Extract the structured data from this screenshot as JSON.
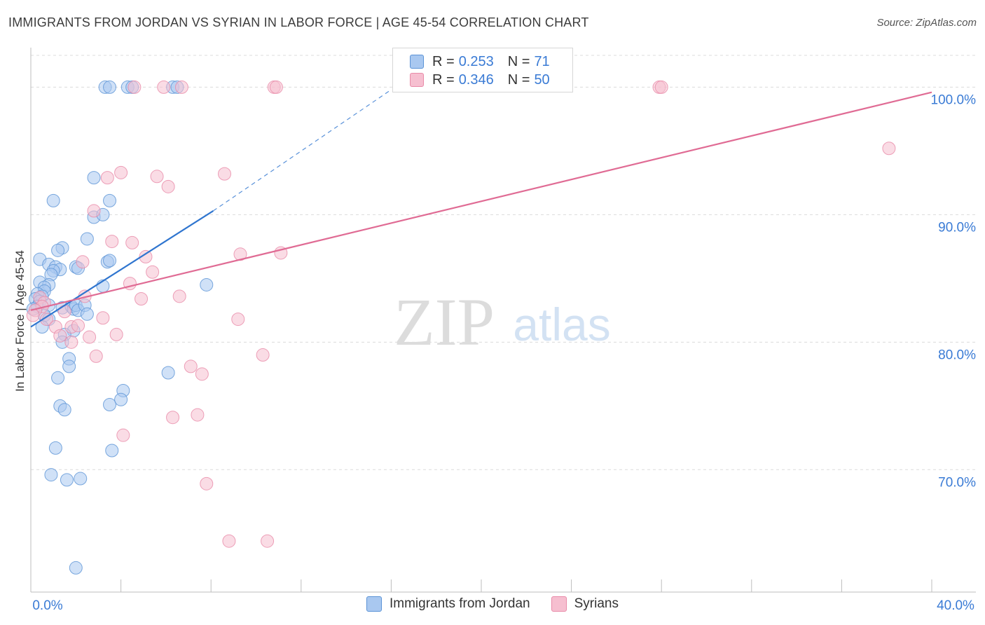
{
  "header": {
    "title": "IMMIGRANTS FROM JORDAN VS SYRIAN IN LABOR FORCE | AGE 45-54 CORRELATION CHART",
    "source": "Source: ZipAtlas.com"
  },
  "watermark": {
    "zip": "ZIP",
    "atlas": "atlas"
  },
  "colors": {
    "blue_fill": "#a9c8f0",
    "blue_stroke": "#5b93d6",
    "blue_line": "#2f75cf",
    "pink_fill": "#f6bfd0",
    "pink_stroke": "#e98aa8",
    "pink_line": "#e06b94",
    "grid": "#dcdcdc",
    "axis_label_blue": "#3a7bd5"
  },
  "legend": {
    "rows": [
      {
        "r_label": "R = ",
        "r_value": "0.253",
        "n_label": "N = ",
        "n_value": "71"
      },
      {
        "r_label": "R = ",
        "r_value": "0.346",
        "n_label": "N = ",
        "n_value": "50"
      }
    ]
  },
  "bottom_legend": {
    "items": [
      {
        "label": "Immigrants from Jordan"
      },
      {
        "label": "Syrians"
      }
    ]
  },
  "chart_data": {
    "type": "scatter",
    "title": "IMMIGRANTS FROM JORDAN VS SYRIAN IN LABOR FORCE | AGE 45-54 CORRELATION CHART",
    "xlabel": "",
    "ylabel": "In Labor Force | Age 45-54",
    "xlim": [
      0,
      40
    ],
    "ylim": [
      60.4,
      103.1
    ],
    "x_tick_labels": [
      {
        "value": 0,
        "label": "0.0%"
      },
      {
        "value": 40,
        "label": "40.0%"
      }
    ],
    "y_tick_labels": [
      {
        "value": 70,
        "label": "70.0%"
      },
      {
        "value": 80,
        "label": "80.0%"
      },
      {
        "value": 90,
        "label": "90.0%"
      },
      {
        "value": 100,
        "label": "100.0%"
      }
    ],
    "x_minor_ticks": [
      0,
      4,
      8,
      12,
      16,
      20,
      24,
      28,
      32,
      36,
      40
    ],
    "grid": true,
    "series": [
      {
        "name": "Immigrants from Jordan",
        "R": 0.253,
        "N": 71,
        "trend": {
          "solid": [
            [
              0,
              81.2
            ],
            [
              8.1,
              90.3
            ]
          ],
          "dashed": [
            [
              8.1,
              90.3
            ],
            [
              16.0,
              99.8
            ]
          ]
        },
        "points": [
          [
            3.3,
            100
          ],
          [
            3.5,
            100
          ],
          [
            4.3,
            100
          ],
          [
            4.5,
            100
          ],
          [
            6.3,
            100
          ],
          [
            6.5,
            100
          ],
          [
            2.8,
            92.9
          ],
          [
            1.0,
            91.1
          ],
          [
            3.5,
            91.1
          ],
          [
            2.8,
            89.8
          ],
          [
            3.2,
            90.0
          ],
          [
            2.5,
            88.1
          ],
          [
            1.4,
            87.4
          ],
          [
            1.2,
            87.2
          ],
          [
            0.4,
            86.5
          ],
          [
            3.4,
            86.3
          ],
          [
            3.5,
            86.4
          ],
          [
            0.8,
            86.1
          ],
          [
            1.1,
            85.9
          ],
          [
            2.0,
            85.9
          ],
          [
            2.1,
            85.8
          ],
          [
            1.3,
            85.7
          ],
          [
            1.0,
            85.6
          ],
          [
            0.9,
            85.3
          ],
          [
            0.4,
            84.7
          ],
          [
            0.8,
            84.5
          ],
          [
            0.6,
            84.3
          ],
          [
            3.2,
            84.4
          ],
          [
            7.8,
            84.5
          ],
          [
            0.6,
            84.0
          ],
          [
            0.3,
            83.8
          ],
          [
            0.5,
            83.6
          ],
          [
            0.2,
            83.4
          ],
          [
            0.4,
            83.2
          ],
          [
            0.3,
            82.8
          ],
          [
            0.1,
            82.6
          ],
          [
            0.8,
            82.9
          ],
          [
            1.4,
            82.7
          ],
          [
            1.8,
            82.8
          ],
          [
            1.9,
            82.6
          ],
          [
            2.0,
            82.9
          ],
          [
            2.1,
            82.5
          ],
          [
            2.4,
            82.9
          ],
          [
            2.5,
            82.2
          ],
          [
            0.6,
            82.1
          ],
          [
            0.8,
            81.8
          ],
          [
            0.5,
            81.2
          ],
          [
            1.9,
            80.9
          ],
          [
            1.5,
            80.6
          ],
          [
            1.4,
            80.0
          ],
          [
            1.7,
            78.7
          ],
          [
            1.7,
            78.1
          ],
          [
            1.2,
            77.2
          ],
          [
            6.1,
            77.6
          ],
          [
            4.1,
            76.2
          ],
          [
            1.3,
            75.0
          ],
          [
            1.5,
            74.7
          ],
          [
            3.5,
            75.1
          ],
          [
            4.0,
            75.5
          ],
          [
            1.1,
            71.7
          ],
          [
            3.6,
            71.5
          ],
          [
            0.9,
            69.6
          ],
          [
            1.6,
            69.2
          ],
          [
            2.2,
            69.3
          ],
          [
            2.0,
            62.3
          ]
        ]
      },
      {
        "name": "Syrians",
        "R": 0.346,
        "N": 50,
        "trend": {
          "solid": [
            [
              0,
              82.5
            ],
            [
              40,
              99.6
            ]
          ]
        },
        "points": [
          [
            4.6,
            100
          ],
          [
            5.9,
            100
          ],
          [
            6.7,
            100
          ],
          [
            10.8,
            100
          ],
          [
            10.9,
            100
          ],
          [
            27.9,
            100
          ],
          [
            28.0,
            100
          ],
          [
            38.1,
            95.2
          ],
          [
            4.0,
            93.3
          ],
          [
            3.4,
            92.9
          ],
          [
            5.6,
            93.0
          ],
          [
            8.6,
            93.2
          ],
          [
            6.1,
            92.2
          ],
          [
            2.8,
            90.3
          ],
          [
            3.6,
            87.9
          ],
          [
            4.5,
            87.8
          ],
          [
            2.3,
            86.3
          ],
          [
            5.1,
            86.7
          ],
          [
            9.3,
            86.9
          ],
          [
            11.1,
            87.0
          ],
          [
            5.4,
            85.5
          ],
          [
            4.4,
            84.6
          ],
          [
            2.4,
            83.6
          ],
          [
            4.9,
            83.4
          ],
          [
            6.6,
            83.6
          ],
          [
            0.4,
            83.5
          ],
          [
            0.6,
            83.1
          ],
          [
            0.5,
            82.8
          ],
          [
            0.2,
            82.5
          ],
          [
            0.1,
            82.1
          ],
          [
            1.5,
            82.4
          ],
          [
            0.7,
            81.8
          ],
          [
            1.1,
            81.2
          ],
          [
            1.8,
            81.2
          ],
          [
            2.1,
            81.3
          ],
          [
            3.2,
            81.9
          ],
          [
            9.2,
            81.8
          ],
          [
            1.3,
            80.5
          ],
          [
            1.8,
            80.0
          ],
          [
            2.6,
            80.4
          ],
          [
            3.8,
            80.6
          ],
          [
            10.3,
            79.0
          ],
          [
            2.9,
            78.9
          ],
          [
            7.1,
            78.1
          ],
          [
            7.6,
            77.5
          ],
          [
            6.3,
            74.1
          ],
          [
            7.4,
            74.3
          ],
          [
            4.1,
            72.7
          ],
          [
            7.8,
            68.9
          ],
          [
            8.8,
            64.4
          ],
          [
            10.5,
            64.4
          ]
        ]
      }
    ]
  }
}
